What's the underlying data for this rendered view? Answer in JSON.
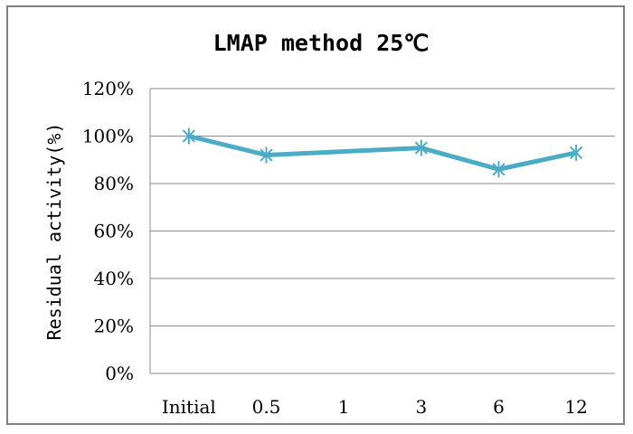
{
  "chart_data": {
    "type": "line",
    "title": "LMAP method 25℃",
    "xlabel": "",
    "ylabel": "Residual activity(%)",
    "categories": [
      "Initial",
      "0.5",
      "1",
      "3",
      "6",
      "12"
    ],
    "x_positions": [
      0,
      1,
      2,
      3,
      4,
      5
    ],
    "series": [
      {
        "points": [
          {
            "category": "Initial",
            "value": 100
          },
          {
            "category": "0.5",
            "value": 92
          },
          {
            "category": "3",
            "value": 95
          },
          {
            "category": "6",
            "value": 86
          },
          {
            "category": "12",
            "value": 93
          }
        ]
      }
    ],
    "ylim": [
      0,
      120
    ],
    "yticks": [
      0,
      20,
      40,
      60,
      80,
      100,
      120
    ],
    "ytick_labels": [
      "0%",
      "20%",
      "40%",
      "60%",
      "80%",
      "100%",
      "120%"
    ],
    "grid": true,
    "legend": "none",
    "line_color": "#4bacc6"
  }
}
